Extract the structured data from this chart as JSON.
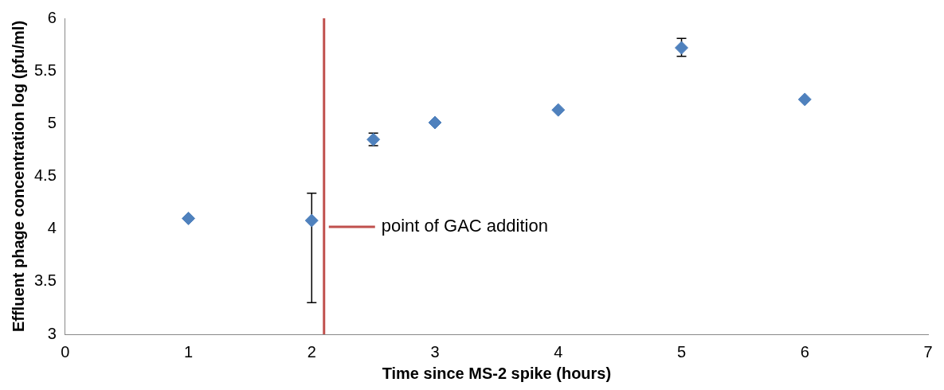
{
  "chart_data": {
    "type": "scatter",
    "xlabel": "Time since MS-2 spike (hours)",
    "ylabel": "Effluent phage concentration log (pfu/ml)",
    "x": [
      1,
      2,
      2.5,
      3,
      4,
      5,
      6
    ],
    "series": [
      {
        "color": "#4f81bd",
        "values": [
          4.1,
          4.08,
          4.85,
          5.01,
          5.13,
          5.72,
          5.23
        ],
        "errors": [
          null,
          [
            3.3,
            4.34
          ],
          [
            4.79,
            4.91
          ],
          null,
          null,
          [
            5.64,
            5.81
          ],
          null
        ]
      }
    ],
    "xlim": [
      0,
      7
    ],
    "xticks": [
      0,
      1,
      2,
      3,
      4,
      5,
      6,
      7
    ],
    "ylim": [
      3,
      6
    ],
    "yticks": [
      3,
      3.5,
      4,
      4.5,
      5,
      5.5,
      6
    ],
    "ref_lines": [
      {
        "axis": "x",
        "value": 2.1,
        "label": "point of GAC addition",
        "color": "#c0504d",
        "line_style": "solid"
      }
    ],
    "grid": false,
    "marker": "diamond"
  }
}
